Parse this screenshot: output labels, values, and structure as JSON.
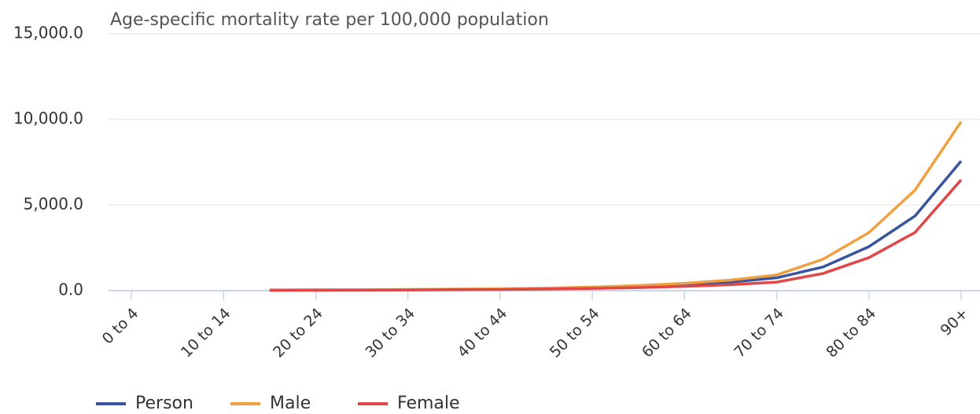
{
  "chart_data": {
    "type": "line",
    "title": "Age-specific mortality rate per 100,000 population",
    "categories": [
      "0 to 4",
      null,
      "10 to 14",
      null,
      "20 to 24",
      null,
      "30 to 34",
      null,
      "40 to 44",
      null,
      "50 to 54",
      null,
      "60 to 64",
      null,
      "70 to 74",
      null,
      "80 to 84",
      null,
      "90+"
    ],
    "series": [
      {
        "name": "Person",
        "color": "#3a55a0",
        "values": [
          null,
          null,
          null,
          30,
          40,
          45,
          55,
          70,
          90,
          120,
          170,
          250,
          350,
          500,
          750,
          1380,
          2570,
          4360,
          7570
        ]
      },
      {
        "name": "Male",
        "color": "#f0a040",
        "values": [
          null,
          null,
          null,
          45,
          55,
          60,
          70,
          90,
          110,
          150,
          210,
          300,
          430,
          620,
          920,
          1830,
          3390,
          5870,
          9860
        ]
      },
      {
        "name": "Female",
        "color": "#e04848",
        "values": [
          null,
          null,
          null,
          20,
          25,
          30,
          40,
          55,
          70,
          90,
          130,
          180,
          250,
          350,
          500,
          1000,
          1930,
          3400,
          6470
        ]
      }
    ],
    "ylim": [
      0,
      15000
    ],
    "yticks": [
      {
        "value": 0,
        "label": "0.0"
      },
      {
        "value": 5000,
        "label": "5,000.0"
      },
      {
        "value": 10000,
        "label": "10,000.0"
      },
      {
        "value": 15000,
        "label": "15,000.0"
      }
    ],
    "grid": true
  }
}
